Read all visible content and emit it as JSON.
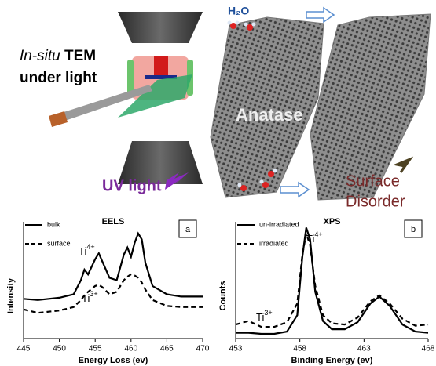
{
  "illustration": {
    "method": {
      "italic": "In-situ",
      "bold": "TEM",
      "line2": "under light"
    },
    "molecule": "H₂O",
    "crystal": "Anatase",
    "light": "UV light",
    "surface": [
      "Surface",
      "Disorder"
    ]
  },
  "chart_data": [
    {
      "type": "line",
      "title": "EELS",
      "panel": "a",
      "xlabel": "Energy Loss (ev)",
      "ylabel": "Intensity",
      "x": [
        445,
        447,
        450,
        452,
        453,
        453.5,
        454,
        455,
        455.5,
        456,
        457,
        458,
        459,
        459.5,
        460,
        460.5,
        461,
        461.5,
        462,
        463,
        465,
        467,
        470
      ],
      "series": [
        {
          "name": "bulk",
          "color": "#000000",
          "dash": false,
          "values": [
            0.34,
            0.33,
            0.35,
            0.38,
            0.5,
            0.59,
            0.55,
            0.68,
            0.73,
            0.66,
            0.52,
            0.5,
            0.72,
            0.78,
            0.7,
            0.82,
            0.9,
            0.85,
            0.65,
            0.45,
            0.38,
            0.36,
            0.36
          ]
        },
        {
          "name": "surface",
          "color": "#000000",
          "dash": true,
          "values": [
            0.25,
            0.22,
            0.24,
            0.27,
            0.33,
            0.37,
            0.4,
            0.45,
            0.46,
            0.44,
            0.38,
            0.4,
            0.5,
            0.53,
            0.55,
            0.54,
            0.52,
            0.48,
            0.42,
            0.33,
            0.28,
            0.27,
            0.27
          ]
        }
      ],
      "annotations": [
        {
          "text": "Ti",
          "superscript": "4+"
        },
        {
          "text": "Ti",
          "superscript": "3+"
        }
      ],
      "xlim": [
        445,
        470
      ],
      "xticks": [
        445,
        450,
        455,
        460,
        465,
        470
      ],
      "ylim": [
        0,
        1
      ]
    },
    {
      "type": "line",
      "title": "XPS",
      "panel": "b",
      "xlabel": "Binding Energy (ev)",
      "ylabel": "Counts",
      "x": [
        453,
        454,
        455,
        456,
        457,
        457.8,
        458.2,
        458.5,
        458.8,
        459.2,
        459.8,
        460.5,
        461.5,
        462.5,
        463.5,
        464.2,
        465,
        466,
        467,
        468
      ],
      "series": [
        {
          "name": "un-irradiated",
          "color": "#000000",
          "dash": false,
          "values": [
            0.05,
            0.05,
            0.04,
            0.04,
            0.06,
            0.2,
            0.7,
            0.95,
            0.85,
            0.4,
            0.15,
            0.08,
            0.08,
            0.14,
            0.3,
            0.36,
            0.28,
            0.12,
            0.06,
            0.05
          ]
        },
        {
          "name": "irradiated",
          "color": "#000000",
          "dash": true,
          "values": [
            0.12,
            0.15,
            0.1,
            0.1,
            0.14,
            0.3,
            0.72,
            0.9,
            0.8,
            0.45,
            0.2,
            0.13,
            0.12,
            0.18,
            0.32,
            0.37,
            0.3,
            0.17,
            0.11,
            0.12
          ]
        }
      ],
      "annotations": [
        {
          "text": "Ti",
          "superscript": "4+"
        },
        {
          "text": "Ti",
          "superscript": "3+"
        }
      ],
      "xlim": [
        453,
        468
      ],
      "xticks": [
        453,
        458,
        463,
        468
      ],
      "ylim": [
        0,
        1
      ]
    }
  ]
}
